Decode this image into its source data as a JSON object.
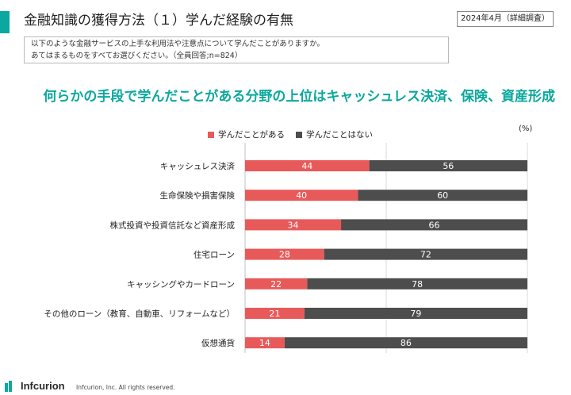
{
  "header": {
    "title": "金融知識の獲得方法（１）学んだ経験の有無",
    "date_badge": "2024年4月（詳細調査）",
    "accent_color": "#0aa89e"
  },
  "question": {
    "line1": "以下のような金融サービスの上手な利用法や注意点について学んだことがありますか。",
    "line2": "あてはまるものをすべてお選びください。（全員回答;n=824）"
  },
  "headline": {
    "text": "何らかの手段で学んだことがある分野の上位はキャッシュレス決済、保険、資産形成",
    "color": "#0aa89e"
  },
  "chart_data": {
    "type": "bar",
    "orientation": "horizontal",
    "stacked": true,
    "unit": "(%)",
    "categories": [
      "キャッシュレス決済",
      "生命保険や損害保険",
      "株式投資や投資信託など資産形成",
      "住宅ローン",
      "キャッシングやカードローン",
      "その他のローン（教育、自動車、リフォームなど）",
      "仮想通貨"
    ],
    "series": [
      {
        "name": "学んだことがある",
        "color": "#e85a5a",
        "values": [
          44,
          40,
          34,
          28,
          22,
          21,
          14
        ]
      },
      {
        "name": "学んだことはない",
        "color": "#4d4d4d",
        "values": [
          56,
          60,
          66,
          72,
          78,
          79,
          86
        ]
      }
    ],
    "xlim": [
      0,
      100
    ],
    "gridlines": [
      0,
      50,
      100
    ],
    "legend_position": "top"
  },
  "footer": {
    "brand": "Infcurion",
    "copyright": "Infcurion, Inc.  All rights reserved."
  }
}
